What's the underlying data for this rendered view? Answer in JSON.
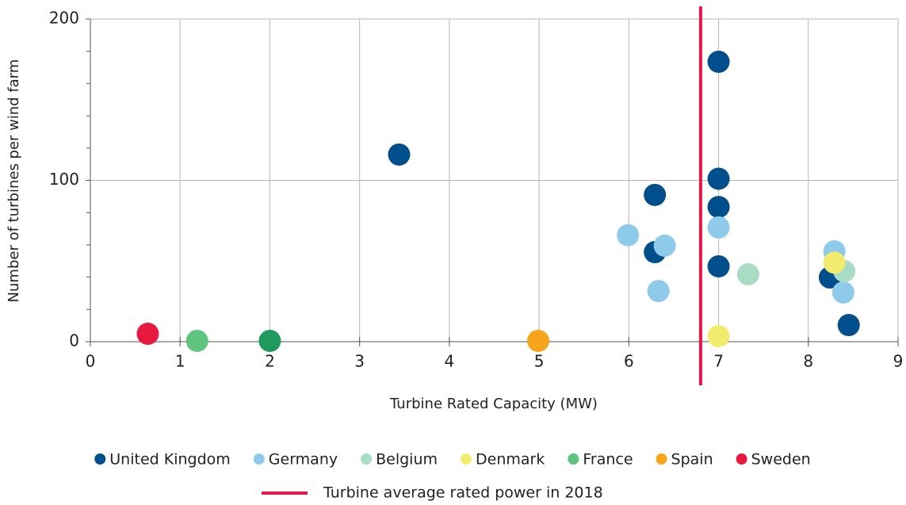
{
  "chart_data": {
    "type": "scatter",
    "xlabel": "Turbine Rated Capacity (MW)",
    "ylabel": "Number of turbines per wind farm",
    "xlim": [
      0,
      9
    ],
    "ylim": [
      0,
      200
    ],
    "xticks": [
      0,
      1,
      2,
      3,
      4,
      5,
      6,
      7,
      8,
      9
    ],
    "yticks": [
      0,
      100,
      200
    ],
    "yminorticks": [
      20,
      40,
      60,
      80,
      120,
      140,
      160,
      180
    ],
    "grid": true,
    "series": [
      {
        "name": "United Kingdom",
        "color": "#004f8c",
        "x": [
          3.44,
          7,
          7,
          6.29,
          7,
          6.29,
          7,
          8.24,
          8.45
        ],
        "values": [
          116,
          173.5,
          101,
          91,
          83.5,
          55.5,
          46.7,
          39.8,
          10.3
        ]
      },
      {
        "name": "Germany",
        "color": "#8ecae9",
        "x": [
          5.99,
          6.4,
          7,
          6.33,
          8.29,
          8.39
        ],
        "values": [
          66,
          59.5,
          70.8,
          31.4,
          56,
          30.5
        ]
      },
      {
        "name": "Belgium",
        "color": "#a8dcc5",
        "x": [
          7.33,
          8.4
        ],
        "values": [
          41.8,
          43.7
        ]
      },
      {
        "name": "Denmark",
        "color": "#f1ec6e",
        "x": [
          7,
          8.29
        ],
        "values": [
          3.4,
          49
        ]
      },
      {
        "name": "France",
        "color": "#5ec57f",
        "point_colors": [
          "#5ec57f",
          "#1f9a5d"
        ],
        "x": [
          1.19,
          2.0
        ],
        "values": [
          0.5,
          0.5
        ]
      },
      {
        "name": "Spain",
        "color": "#f7a51b",
        "x": [
          4.99
        ],
        "values": [
          0.5
        ]
      },
      {
        "name": "Sweden",
        "color": "#e8193f",
        "x": [
          0.64
        ],
        "values": [
          4.9
        ]
      }
    ],
    "reference_line": {
      "x": 6.8,
      "label": "Turbine average rated power in 2018",
      "color": "#e5194b"
    }
  }
}
